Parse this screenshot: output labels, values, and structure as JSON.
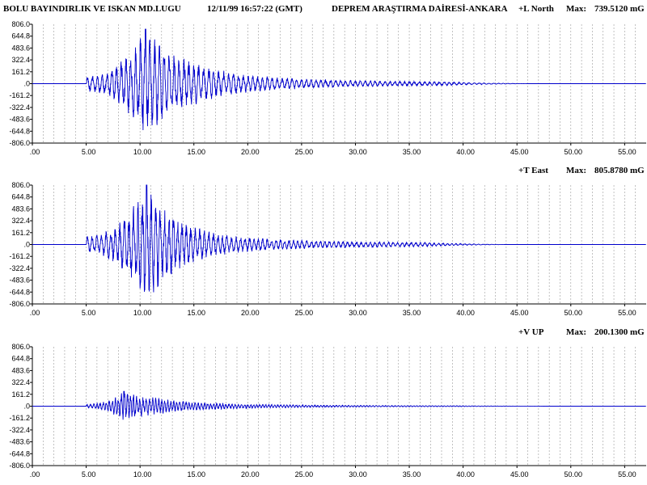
{
  "header": {
    "left": "BOLU BAYINDIRLIK VE ISKAN MD.LUGU",
    "datetime": "12/11/99   16:57:22  (GMT)",
    "institution": "DEPREM ARAŞTIRMA DAİRESİ-ANKARA"
  },
  "colors": {
    "trace": "#0000cc",
    "axis": "#000000",
    "grid": "#9a9a9a"
  },
  "chart_data": [
    {
      "type": "line",
      "component": "+L North",
      "max_label": "Max:",
      "max_value": "739.5120 mG",
      "ylim": [
        -806.0,
        806.0
      ],
      "xlim": [
        0,
        57
      ],
      "y_tick_labels": [
        "806.0",
        "644.8",
        "483.6",
        "322.4",
        "161.2",
        ".0",
        "-161.2",
        "-322.4",
        "-483.6",
        "-644.8",
        "-806.0"
      ],
      "x_tick_labels": [
        ".00",
        "5.00",
        "10.00",
        "15.00",
        "20.00",
        "25.00",
        "30.00",
        "35.00",
        "40.00",
        "45.00",
        "50.00",
        "55.00"
      ],
      "envelope": {
        "onset": 5.0,
        "peak_time": 10.5,
        "peak": 739.5,
        "decay": 4.0,
        "coda": 38.0,
        "freq": 2.2,
        "seed": 11
      }
    },
    {
      "type": "line",
      "component": "+T East",
      "max_label": "Max:",
      "max_value": "805.8780 mG",
      "ylim": [
        -806.0,
        806.0
      ],
      "xlim": [
        0,
        57
      ],
      "y_tick_labels": [
        "806.0",
        "644.8",
        "483.6",
        "322.4",
        "161.2",
        ".0",
        "-161.2",
        "-322.4",
        "-483.6",
        "-644.8",
        "-806.0"
      ],
      "x_tick_labels": [
        ".00",
        "5.00",
        "10.00",
        "15.00",
        "20.00",
        "25.00",
        "30.00",
        "35.00",
        "40.00",
        "45.00",
        "50.00",
        "55.00"
      ],
      "envelope": {
        "onset": 5.0,
        "peak_time": 10.6,
        "peak": 805.9,
        "decay": 3.0,
        "coda": 36.0,
        "freq": 2.4,
        "seed": 23
      }
    },
    {
      "type": "line",
      "component": "+V UP",
      "max_label": "Max:",
      "max_value": "200.1300 mG",
      "ylim": [
        -806.0,
        806.0
      ],
      "xlim": [
        0,
        57
      ],
      "y_tick_labels": [
        "806.0",
        "644.8",
        "483.6",
        "322.4",
        "161.2",
        ".0",
        "-161.2",
        "-322.4",
        "-483.6",
        "-644.8",
        "-806.0"
      ],
      "x_tick_labels": [
        ".00",
        "5.00",
        "10.00",
        "15.00",
        "20.00",
        "25.00",
        "30.00",
        "35.00",
        "40.00",
        "45.00",
        "50.00",
        "55.00"
      ],
      "envelope": {
        "onset": 5.0,
        "peak_time": 8.5,
        "peak": 200.1,
        "decay": 4.5,
        "coda": 40.0,
        "freq": 3.5,
        "seed": 37
      }
    }
  ]
}
